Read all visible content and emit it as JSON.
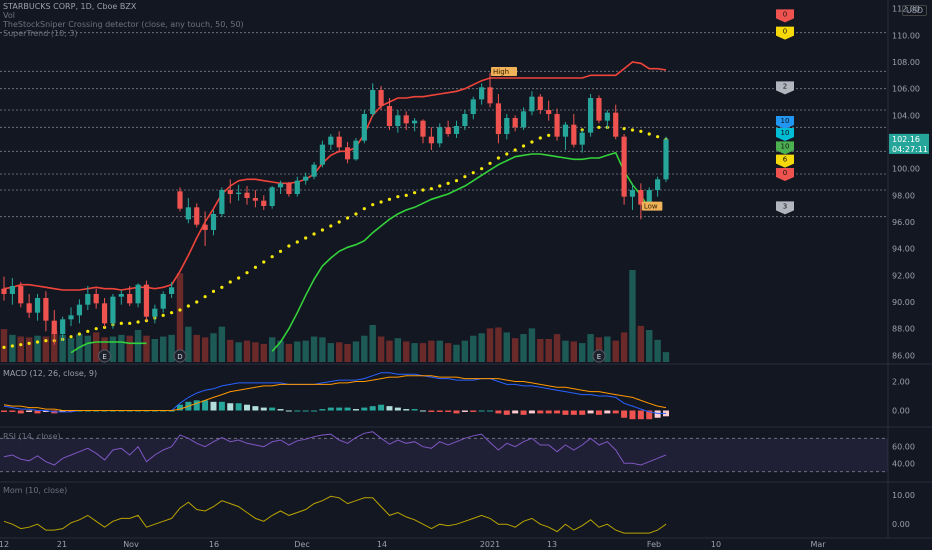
{
  "chart_data": {
    "type": "candlestick",
    "symbol": "STARBUCKS CORP, 1D, Cboe BZX",
    "indicators_label": "Vol",
    "detector_label": "TheStockSniper Crossing detector (close, any touch, 50, 50)",
    "overlay_label": "SuperTrend (10, 3)",
    "currency": "USD",
    "price_axis": {
      "min": 85.5,
      "max": 112.5,
      "ticks": [
        "112.00",
        "110.00",
        "108.00",
        "106.00",
        "104.00",
        "102.00",
        "100.00",
        "98.00",
        "96.00",
        "94.00",
        "92.00",
        "90.00",
        "88.00",
        "86.00"
      ]
    },
    "last_price": "102.16",
    "countdown": "04:27:11",
    "x_labels": [
      "12",
      "21",
      "Nov",
      "16",
      "Dec",
      "14",
      "2021",
      "13",
      "Feb",
      "10",
      "Mar"
    ],
    "candles": [
      [
        91.0,
        91.9,
        90.1,
        90.6
      ],
      [
        90.6,
        91.8,
        89.8,
        91.2
      ],
      [
        91.2,
        91.5,
        89.6,
        89.9
      ],
      [
        89.9,
        90.6,
        88.8,
        89.2
      ],
      [
        89.2,
        90.6,
        88.6,
        90.3
      ],
      [
        90.3,
        90.8,
        87.8,
        88.6
      ],
      [
        88.6,
        89.4,
        86.8,
        87.6
      ],
      [
        87.6,
        88.9,
        87.1,
        88.7
      ],
      [
        88.7,
        89.6,
        88.2,
        89.0
      ],
      [
        89.0,
        90.2,
        88.4,
        89.8
      ],
      [
        89.8,
        91.2,
        89.4,
        90.6
      ],
      [
        90.6,
        91.0,
        89.5,
        89.9
      ],
      [
        89.9,
        90.3,
        88.1,
        88.4
      ],
      [
        88.4,
        90.6,
        88.0,
        90.4
      ],
      [
        90.4,
        90.9,
        89.8,
        90.6
      ],
      [
        90.6,
        91.2,
        89.7,
        89.9
      ],
      [
        89.9,
        91.4,
        89.6,
        91.3
      ],
      [
        91.3,
        91.6,
        88.6,
        88.9
      ],
      [
        88.9,
        89.8,
        88.4,
        89.5
      ],
      [
        89.5,
        90.8,
        89.2,
        90.6
      ],
      [
        90.6,
        91.5,
        90.3,
        91.1
      ],
      [
        98.3,
        98.6,
        96.8,
        97.0
      ],
      [
        96.2,
        97.8,
        95.9,
        97.1
      ],
      [
        97.1,
        97.4,
        95.6,
        95.8
      ],
      [
        95.8,
        96.8,
        94.2,
        95.4
      ],
      [
        95.4,
        96.9,
        95.0,
        96.6
      ],
      [
        96.6,
        98.6,
        96.4,
        98.4
      ],
      [
        98.4,
        99.2,
        97.4,
        98.1
      ],
      [
        98.1,
        98.8,
        97.6,
        98.2
      ],
      [
        98.2,
        98.7,
        97.3,
        97.8
      ],
      [
        97.8,
        98.4,
        97.1,
        97.6
      ],
      [
        97.6,
        98.0,
        96.9,
        97.2
      ],
      [
        97.2,
        98.7,
        97.0,
        98.6
      ],
      [
        98.6,
        99.1,
        98.1,
        98.9
      ],
      [
        98.9,
        99.0,
        97.9,
        98.1
      ],
      [
        98.1,
        99.4,
        97.9,
        99.1
      ],
      [
        99.1,
        99.7,
        98.8,
        99.4
      ],
      [
        99.4,
        100.5,
        99.2,
        100.3
      ],
      [
        100.3,
        102.1,
        100.1,
        101.8
      ],
      [
        101.8,
        102.6,
        101.4,
        102.4
      ],
      [
        102.4,
        102.8,
        101.2,
        101.6
      ],
      [
        101.6,
        102.0,
        100.4,
        100.7
      ],
      [
        100.7,
        102.3,
        100.6,
        102.1
      ],
      [
        102.1,
        104.4,
        101.9,
        104.1
      ],
      [
        104.1,
        106.4,
        103.9,
        105.9
      ],
      [
        105.9,
        106.2,
        104.4,
        104.7
      ],
      [
        104.7,
        105.3,
        102.9,
        103.2
      ],
      [
        103.2,
        104.4,
        102.7,
        104.0
      ],
      [
        104.0,
        104.3,
        102.9,
        103.4
      ],
      [
        103.4,
        103.8,
        102.8,
        103.6
      ],
      [
        103.6,
        103.7,
        101.9,
        102.4
      ],
      [
        102.4,
        103.1,
        101.4,
        101.9
      ],
      [
        101.9,
        103.4,
        101.6,
        103.1
      ],
      [
        103.1,
        103.6,
        102.4,
        102.6
      ],
      [
        102.6,
        103.6,
        102.3,
        103.2
      ],
      [
        103.2,
        104.4,
        102.9,
        104.1
      ],
      [
        104.1,
        105.4,
        103.7,
        105.2
      ],
      [
        105.2,
        106.4,
        104.8,
        106.1
      ],
      [
        106.1,
        107.2,
        104.6,
        104.9
      ],
      [
        104.9,
        105.6,
        101.9,
        102.6
      ],
      [
        102.6,
        104.1,
        102.2,
        103.8
      ],
      [
        103.8,
        104.0,
        102.8,
        103.1
      ],
      [
        103.1,
        104.6,
        102.9,
        104.3
      ],
      [
        104.3,
        105.8,
        104.0,
        105.4
      ],
      [
        105.4,
        105.6,
        104.1,
        104.4
      ],
      [
        104.4,
        105.1,
        103.6,
        104.1
      ],
      [
        104.1,
        104.5,
        102.1,
        102.4
      ],
      [
        102.4,
        103.5,
        101.4,
        103.3
      ],
      [
        103.3,
        104.1,
        101.6,
        101.8
      ],
      [
        101.8,
        102.9,
        101.2,
        102.7
      ],
      [
        102.7,
        105.6,
        102.4,
        105.3
      ],
      [
        105.3,
        105.5,
        103.4,
        103.6
      ],
      [
        103.6,
        104.4,
        103.0,
        104.2
      ],
      [
        104.2,
        104.8,
        102.2,
        102.4
      ],
      [
        102.4,
        102.6,
        97.3,
        97.9
      ],
      [
        97.9,
        98.8,
        96.9,
        98.4
      ],
      [
        98.4,
        98.9,
        96.2,
        97.3
      ],
      [
        97.3,
        98.6,
        97.1,
        98.4
      ],
      [
        98.4,
        99.4,
        97.9,
        99.2
      ],
      [
        99.2,
        102.4,
        99.0,
        102.2
      ]
    ],
    "volumes": [
      4.0,
      3.3,
      3.1,
      3.0,
      3.2,
      3.1,
      3.8,
      3.3,
      2.9,
      3.4,
      3.2,
      3.6,
      3.0,
      3.1,
      3.3,
      3.2,
      3.9,
      3.2,
      2.8,
      3.1,
      3.3,
      10.8,
      4.3,
      3.3,
      3.0,
      3.5,
      4.3,
      2.7,
      2.4,
      2.6,
      2.4,
      2.2,
      3.0,
      2.6,
      2.2,
      2.5,
      2.6,
      3.1,
      3.0,
      2.3,
      2.4,
      2.2,
      2.5,
      3.2,
      4.5,
      3.1,
      2.6,
      2.9,
      2.5,
      2.3,
      2.3,
      2.6,
      2.6,
      2.3,
      2.1,
      2.6,
      3.2,
      3.5,
      4.1,
      4.2,
      3.6,
      2.9,
      3.4,
      4.1,
      2.8,
      2.8,
      3.4,
      2.6,
      2.5,
      2.3,
      3.4,
      3.0,
      3.1,
      2.6,
      3.6,
      11.2,
      4.4,
      3.9,
      2.7,
      1.2
    ],
    "supertrend": [
      86.6,
      86.7,
      86.8,
      86.9,
      87.0,
      87.1,
      87.1,
      87.2,
      87.4,
      87.6,
      87.8,
      88.0,
      88.1,
      88.3,
      88.4,
      88.4,
      88.5,
      88.6,
      88.8,
      89.0,
      89.2,
      89.4,
      89.7,
      90.0,
      90.4,
      90.8,
      91.1,
      91.5,
      91.8,
      92.2,
      92.6,
      93.0,
      93.4,
      93.8,
      94.2,
      94.5,
      94.8,
      95.1,
      95.4,
      95.7,
      96.0,
      96.3,
      96.6,
      97.0,
      97.3,
      97.5,
      97.7,
      97.9,
      98.0,
      98.2,
      98.4,
      98.5,
      98.7,
      98.9,
      99.1,
      99.4,
      99.7,
      100.0,
      100.4,
      100.8,
      101.1,
      101.4,
      101.7,
      102.0,
      102.3,
      102.5,
      102.6,
      102.7,
      102.8,
      102.9,
      103.0,
      103.1,
      103.1,
      103.0,
      103.0,
      102.9,
      102.8,
      102.6,
      102.4,
      102.2
    ],
    "upper_band": [
      91.0,
      91.1,
      91.3,
      91.3,
      91.2,
      91.1,
      91.0,
      90.9,
      90.9,
      90.9,
      91.0,
      91.1,
      91.0,
      91.0,
      90.9,
      91.0,
      91.1,
      91.1,
      91.0,
      91.1,
      91.3,
      92.3,
      93.5,
      94.8,
      96.0,
      97.0,
      98.1,
      98.7,
      99.1,
      99.2,
      99.2,
      99.1,
      99.0,
      98.9,
      98.9,
      99.0,
      99.2,
      99.6,
      100.4,
      101.0,
      101.3,
      101.3,
      101.6,
      102.6,
      104.0,
      104.7,
      105.0,
      105.3,
      105.3,
      105.4,
      105.4,
      105.5,
      105.6,
      105.7,
      105.8,
      106.0,
      106.3,
      106.6,
      106.8,
      106.8,
      106.8,
      106.8,
      106.8,
      106.8,
      106.8,
      106.8,
      106.8,
      106.8,
      106.8,
      106.8,
      107.0,
      107.0,
      107.0,
      107.0,
      107.5,
      108.0,
      107.9,
      107.5,
      107.5,
      107.4
    ],
    "lower_band": [
      null,
      null,
      null,
      null,
      null,
      null,
      null,
      null,
      86.2,
      86.6,
      86.9,
      87.0,
      87.0,
      87.0,
      87.0,
      86.9,
      86.9,
      86.9,
      null,
      null,
      null,
      null,
      null,
      null,
      null,
      null,
      null,
      null,
      null,
      null,
      null,
      null,
      86.3,
      87.0,
      88.0,
      89.2,
      90.5,
      91.7,
      92.7,
      93.3,
      93.8,
      94.1,
      94.3,
      94.6,
      95.2,
      95.7,
      96.2,
      96.6,
      96.9,
      97.1,
      97.4,
      97.7,
      97.9,
      98.1,
      98.4,
      98.7,
      99.1,
      99.5,
      99.9,
      100.3,
      100.6,
      100.9,
      101.0,
      101.1,
      101.1,
      101.0,
      100.9,
      100.8,
      100.7,
      100.7,
      100.8,
      100.8,
      101.0,
      101.2,
      99.8,
      98.8,
      98.0,
      97.0,
      null,
      null
    ],
    "macd_axis": {
      "ticks": [
        "2.00",
        "0.00"
      ],
      "min": -1.0,
      "max": 3.0
    },
    "macd_line": [
      0.3,
      0.2,
      0.1,
      0.1,
      0.0,
      0.0,
      -0.1,
      -0.1,
      -0.1,
      0.0,
      0.0,
      0.0,
      0.0,
      0.0,
      0.0,
      0.0,
      0.0,
      0.0,
      0.0,
      0.0,
      0.0,
      0.5,
      0.9,
      1.2,
      1.4,
      1.5,
      1.7,
      1.8,
      1.9,
      1.9,
      1.9,
      1.9,
      1.9,
      1.9,
      1.8,
      1.8,
      1.8,
      1.8,
      1.9,
      2.0,
      2.1,
      2.1,
      2.1,
      2.2,
      2.4,
      2.6,
      2.6,
      2.5,
      2.5,
      2.5,
      2.4,
      2.3,
      2.2,
      2.2,
      2.1,
      2.1,
      2.1,
      2.2,
      2.2,
      2.0,
      1.8,
      1.8,
      1.7,
      1.7,
      1.6,
      1.5,
      1.4,
      1.3,
      1.2,
      1.1,
      1.1,
      1.0,
      1.0,
      0.9,
      0.5,
      0.3,
      0.1,
      -0.1,
      -0.2,
      -0.2
    ],
    "macd_signal": [
      0.4,
      0.3,
      0.3,
      0.2,
      0.2,
      0.1,
      0.1,
      0.0,
      0.0,
      0.0,
      0.0,
      0.0,
      0.0,
      0.0,
      0.0,
      0.0,
      0.0,
      0.0,
      0.0,
      0.0,
      0.0,
      0.1,
      0.3,
      0.5,
      0.7,
      0.9,
      1.1,
      1.3,
      1.4,
      1.5,
      1.6,
      1.7,
      1.7,
      1.8,
      1.8,
      1.8,
      1.8,
      1.8,
      1.8,
      1.8,
      1.9,
      1.9,
      2.0,
      2.0,
      2.1,
      2.2,
      2.3,
      2.3,
      2.4,
      2.4,
      2.4,
      2.4,
      2.3,
      2.3,
      2.3,
      2.2,
      2.2,
      2.2,
      2.2,
      2.2,
      2.1,
      2.0,
      2.0,
      1.9,
      1.8,
      1.7,
      1.6,
      1.6,
      1.5,
      1.4,
      1.3,
      1.3,
      1.2,
      1.1,
      1.0,
      0.9,
      0.7,
      0.5,
      0.3,
      0.2
    ],
    "macd_hist": [
      -0.1,
      -0.1,
      -0.2,
      -0.1,
      -0.2,
      -0.1,
      -0.2,
      -0.1,
      -0.1,
      0.0,
      0.0,
      0.0,
      0.0,
      0.0,
      0.0,
      0.0,
      0.0,
      0.0,
      0.0,
      0.0,
      0.0,
      0.4,
      0.6,
      0.7,
      0.7,
      0.6,
      0.6,
      0.5,
      0.5,
      0.4,
      0.3,
      0.2,
      0.2,
      0.1,
      0.0,
      0.0,
      0.0,
      0.0,
      0.1,
      0.2,
      0.2,
      0.2,
      0.1,
      0.2,
      0.3,
      0.4,
      0.3,
      0.2,
      0.1,
      0.1,
      0.0,
      -0.1,
      -0.1,
      -0.1,
      -0.2,
      -0.1,
      -0.1,
      0.0,
      0.0,
      -0.2,
      -0.3,
      -0.2,
      -0.3,
      -0.2,
      -0.2,
      -0.2,
      -0.2,
      -0.3,
      -0.3,
      -0.3,
      -0.2,
      -0.3,
      -0.2,
      -0.2,
      -0.5,
      -0.6,
      -0.6,
      -0.6,
      -0.5,
      -0.4
    ],
    "rsi_label": "RSI (14, close)",
    "rsi_axis": {
      "ticks": [
        "60.00",
        "40.00"
      ],
      "min": 20,
      "max": 80
    },
    "rsi": [
      48,
      50,
      45,
      43,
      49,
      42,
      38,
      46,
      50,
      54,
      58,
      52,
      44,
      56,
      58,
      50,
      60,
      42,
      50,
      56,
      60,
      74,
      70,
      64,
      60,
      66,
      71,
      66,
      68,
      64,
      62,
      60,
      66,
      68,
      62,
      67,
      69,
      72,
      74,
      75,
      68,
      64,
      71,
      76,
      78,
      70,
      63,
      68,
      64,
      66,
      60,
      58,
      66,
      62,
      66,
      70,
      73,
      75,
      65,
      56,
      64,
      60,
      66,
      70,
      62,
      62,
      54,
      62,
      56,
      62,
      70,
      62,
      66,
      56,
      40,
      40,
      38,
      42,
      46,
      50
    ],
    "mom_label": "Mom (10, close)",
    "mom_axis": {
      "ticks": [
        "10.00",
        "0.00"
      ],
      "min": -4,
      "max": 13
    },
    "mom": [
      1.0,
      0.0,
      -1.5,
      -1.0,
      0.0,
      -2.0,
      -2.0,
      -1.5,
      0.5,
      1.5,
      3.0,
      1.0,
      -1.0,
      1.0,
      2.0,
      2.0,
      3.0,
      -1.0,
      0.0,
      1.0,
      2.0,
      5.5,
      7.5,
      5.0,
      4.5,
      6.0,
      8.0,
      7.0,
      6.0,
      4.0,
      2.0,
      1.0,
      3.0,
      4.5,
      3.0,
      4.0,
      5.0,
      7.0,
      8.0,
      9.5,
      9.0,
      7.0,
      8.0,
      9.0,
      9.0,
      6.0,
      3.0,
      4.0,
      2.5,
      1.5,
      0.0,
      -1.5,
      0.0,
      -0.5,
      0.0,
      1.0,
      2.0,
      3.0,
      2.0,
      0.0,
      0.0,
      -1.0,
      1.0,
      2.0,
      0.0,
      -1.0,
      -2.5,
      0.0,
      -2.0,
      -0.5,
      1.5,
      -1.0,
      0.0,
      -2.0,
      -3.0,
      -3.0,
      -3.0,
      -3.0,
      -2.0,
      0.0
    ],
    "earnings_markers": [
      {
        "index": 12,
        "label": "E"
      },
      {
        "index": 21,
        "label": "D"
      },
      {
        "index": 71,
        "label": "E"
      }
    ],
    "annotations": [
      {
        "index": 58,
        "label": "High",
        "price": 107.1
      },
      {
        "index": 76,
        "label": "Low",
        "price": 97.0
      }
    ],
    "signal_flags": [
      {
        "label": "0",
        "price": 111.5,
        "color": "#ef5350"
      },
      {
        "label": "0",
        "price": 110.2,
        "color": "#f5d90a"
      },
      {
        "label": "2",
        "price": 106.1,
        "color": "#b2b5be"
      },
      {
        "label": "10",
        "price": 103.5,
        "color": "#2196f3"
      },
      {
        "label": "10",
        "price": 102.6,
        "color": "#00bcd4"
      },
      {
        "label": "10",
        "price": 101.6,
        "color": "#4caf50"
      },
      {
        "label": "6",
        "price": 100.6,
        "color": "#f5d90a"
      },
      {
        "label": "0",
        "price": 99.6,
        "color": "#ef5350"
      },
      {
        "label": "3",
        "price": 97.1,
        "color": "#b2b5be"
      }
    ],
    "hlines": [
      110.2,
      107.3,
      106.0,
      104.4,
      103.1,
      101.3,
      99.6,
      98.4,
      96.4
    ],
    "colors": {
      "up": "#26a69a",
      "down": "#ef5350",
      "supertrend": "#f5e90a",
      "upper": "#f0443a",
      "lower": "#33d13a",
      "macd": "#2962ff",
      "signal": "#ff9800",
      "rsi": "#7e57c2",
      "mom": "#b9a300",
      "price_tag": "#26a69a"
    }
  }
}
